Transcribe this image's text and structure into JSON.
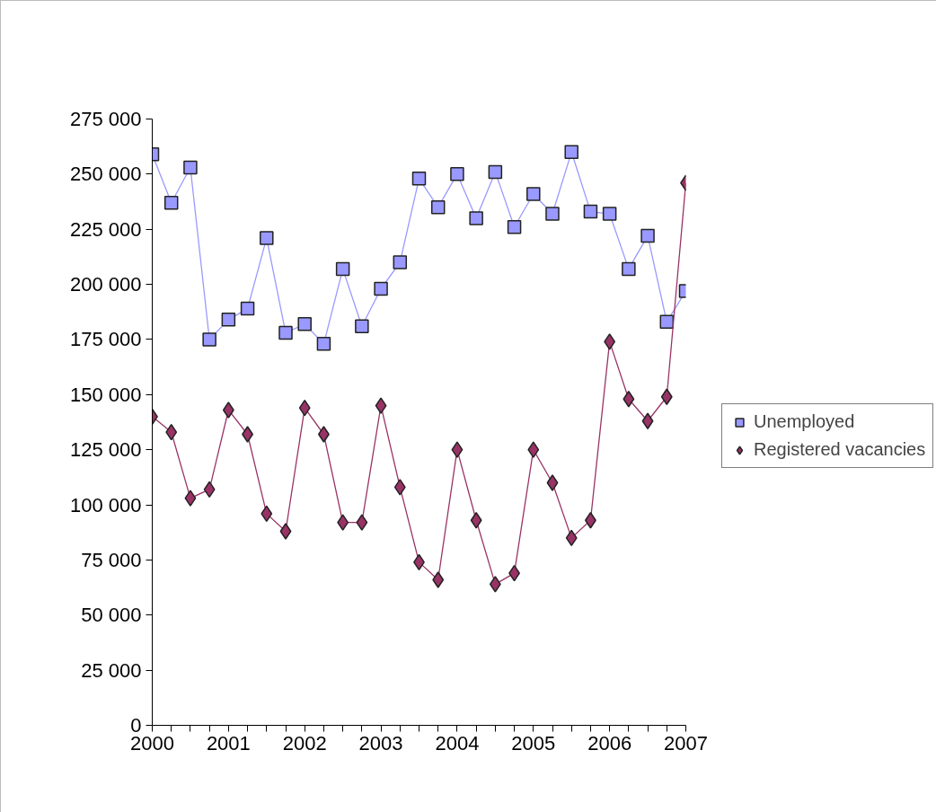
{
  "chart_data": {
    "type": "line",
    "categories": [
      "2000",
      null,
      null,
      null,
      "2001",
      null,
      null,
      null,
      "2002",
      null,
      null,
      null,
      "2003",
      null,
      null,
      null,
      "2004",
      null,
      null,
      null,
      "2005",
      null,
      null,
      null,
      "2006",
      null,
      null,
      null,
      "2007"
    ],
    "series": [
      {
        "name": "Unemployed",
        "color": "#9999ff",
        "marker": "square",
        "values": [
          259000,
          237000,
          253000,
          175000,
          184000,
          189000,
          221000,
          178000,
          182000,
          173000,
          207000,
          181000,
          198000,
          210000,
          248000,
          235000,
          250000,
          230000,
          251000,
          226000,
          241000,
          232000,
          260000,
          233000,
          232000,
          207000,
          222000,
          183000,
          197000
        ]
      },
      {
        "name": "Registered vacancies",
        "color": "#993366",
        "marker": "diamond",
        "values": [
          140000,
          133000,
          103000,
          107000,
          143000,
          132000,
          96000,
          88000,
          144000,
          132000,
          92000,
          92000,
          145000,
          108000,
          74000,
          66000,
          125000,
          93000,
          64000,
          69000,
          125000,
          110000,
          85000,
          93000,
          174000,
          148000,
          138000,
          149000,
          246000
        ]
      }
    ],
    "ylim": [
      0,
      275000
    ],
    "yticks": [
      {
        "value": 0,
        "label": "0"
      },
      {
        "value": 25000,
        "label": "25 000"
      },
      {
        "value": 50000,
        "label": "50 000"
      },
      {
        "value": 75000,
        "label": "75 000"
      },
      {
        "value": 100000,
        "label": "100 000"
      },
      {
        "value": 125000,
        "label": "125 000"
      },
      {
        "value": 150000,
        "label": "150 000"
      },
      {
        "value": 175000,
        "label": "175 000"
      },
      {
        "value": 200000,
        "label": "200 000"
      },
      {
        "value": 225000,
        "label": "225 000"
      },
      {
        "value": 250000,
        "label": "250 000"
      },
      {
        "value": 275000,
        "label": "275 000"
      }
    ],
    "grid": false,
    "legend": "right"
  }
}
